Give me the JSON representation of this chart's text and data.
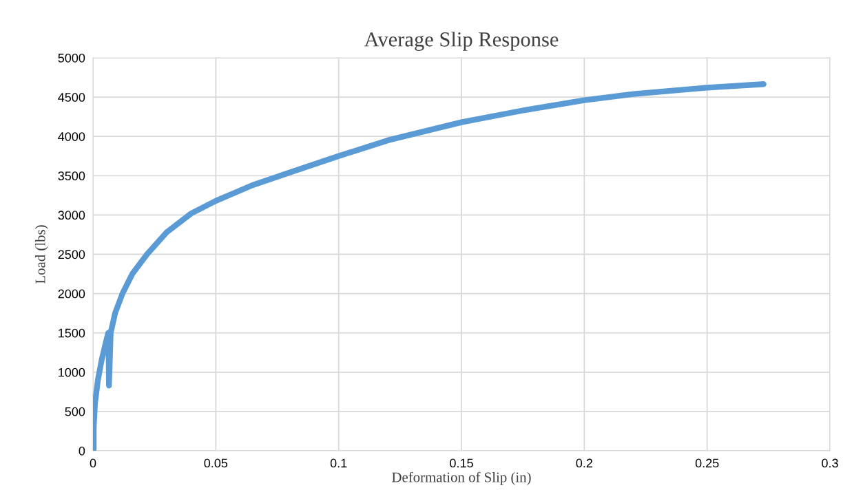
{
  "chart_data": {
    "type": "line",
    "title": "Average Slip Response",
    "xlabel": "Deformation of Slip (in)",
    "ylabel": "Load (lbs)",
    "series": [
      {
        "color": "#5b9bd5",
        "x": [
          0.0003,
          0.0003,
          0.0008,
          0.002,
          0.0035,
          0.005,
          0.0062,
          0.0064,
          0.0065,
          0.0068,
          0.0072,
          0.009,
          0.012,
          0.016,
          0.022,
          0.03,
          0.04,
          0.05,
          0.065,
          0.08,
          0.1,
          0.12,
          0.15,
          0.175,
          0.2,
          0.22,
          0.25,
          0.273
        ],
        "values": [
          20,
          300,
          600,
          900,
          1150,
          1350,
          1500,
          1200,
          830,
          1100,
          1500,
          1750,
          2000,
          2250,
          2500,
          2780,
          3020,
          3180,
          3380,
          3540,
          3750,
          3950,
          4180,
          4330,
          4460,
          4540,
          4620,
          4665
        ]
      }
    ],
    "xlim": [
      0,
      0.3
    ],
    "xticks": [
      0,
      0.05,
      0.1,
      0.15,
      0.2,
      0.25,
      0.3
    ],
    "ylim": [
      0,
      5000
    ],
    "yticks": [
      0,
      500,
      1000,
      1500,
      2000,
      2500,
      3000,
      3500,
      4000,
      4500,
      5000
    ],
    "grid": true,
    "legend": false,
    "marker": "none",
    "line_style": "solid"
  }
}
